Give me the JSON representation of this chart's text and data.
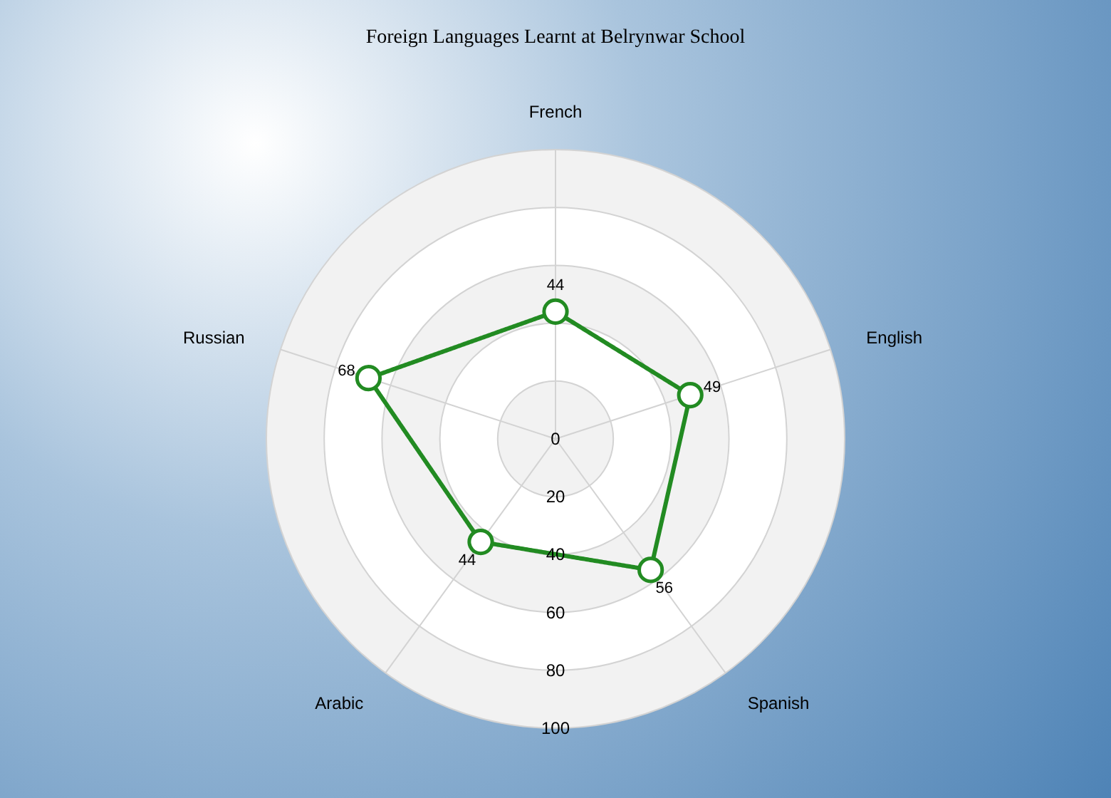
{
  "chart_data": {
    "type": "radar",
    "title": "Foreign Languages Learnt at Belrynwar School",
    "categories": [
      "French",
      "English",
      "Spanish",
      "Arabic",
      "Russian"
    ],
    "series": [
      {
        "color": "#228b22",
        "values": [
          44,
          49,
          56,
          44,
          68
        ]
      }
    ],
    "ylim": [
      0,
      100
    ],
    "yticks": [
      0,
      20,
      40,
      60,
      80,
      100
    ],
    "grid": true,
    "marker": "circle",
    "line_style": "solid",
    "data_labels": true
  }
}
